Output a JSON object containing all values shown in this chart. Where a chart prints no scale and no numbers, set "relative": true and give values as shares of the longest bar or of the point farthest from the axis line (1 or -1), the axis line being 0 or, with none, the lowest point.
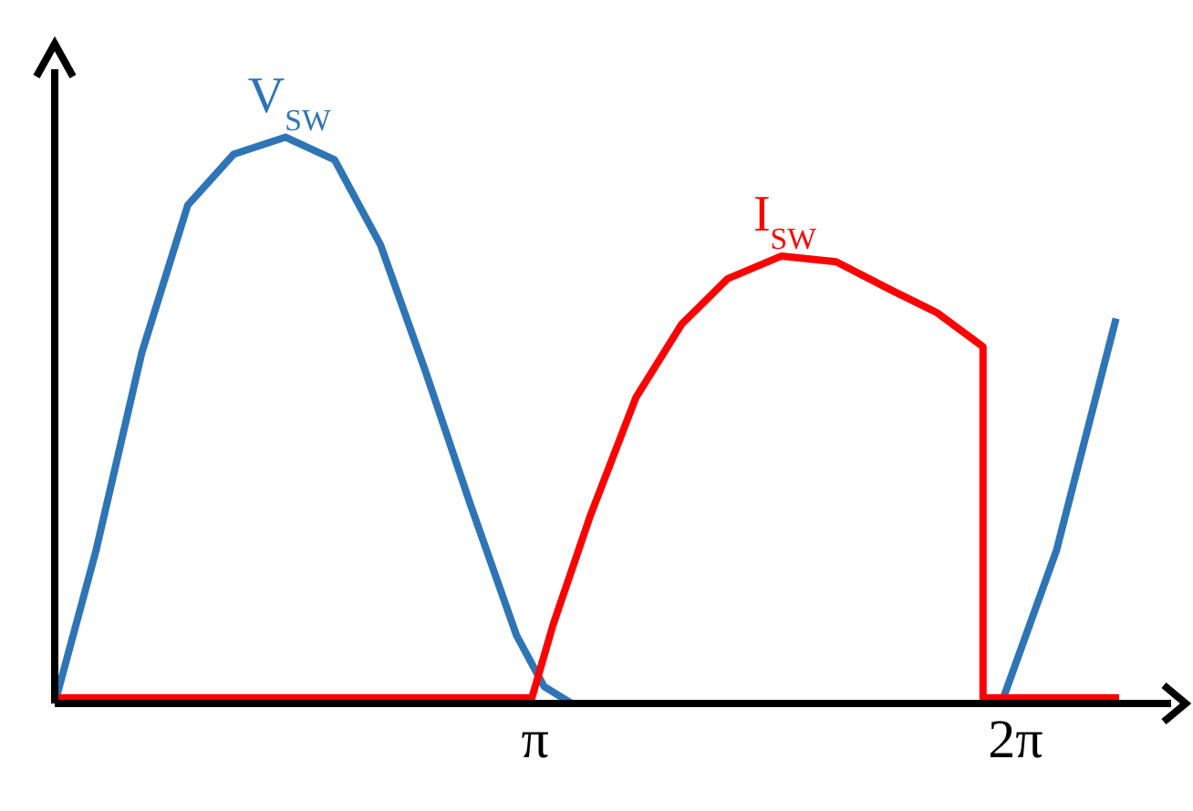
{
  "chart_data": {
    "type": "line",
    "relative": true,
    "marker": "none",
    "line_style": "solid",
    "tick_labels": "x",
    "xlim": [
      0,
      7.3
    ],
    "xticks": [
      {
        "value": 3.1416,
        "label": "π"
      },
      {
        "value": 6.2832,
        "label": "2π"
      }
    ],
    "series": [
      {
        "name": "V$_{SW}$",
        "color": "#2e75b6",
        "x": [
          0,
          0.27,
          0.57,
          0.87,
          1.17,
          1.51,
          1.83,
          2.13,
          2.42,
          2.72,
          3.02,
          3.2,
          3.38,
          6.19,
          6.55,
          6.94
        ],
        "values": [
          0,
          0.27,
          0.62,
          0.88,
          0.97,
          1,
          0.96,
          0.81,
          0.59,
          0.35,
          0.12,
          0.03,
          0,
          0,
          0.27,
          0.68
        ]
      },
      {
        "name": "I$_{SW}$",
        "color": "#ff0000",
        "x": [
          0,
          3.12,
          3.26,
          3.5,
          3.8,
          4.1,
          4.4,
          4.75,
          5.11,
          5.47,
          5.77,
          6.07,
          6.07,
          6.96
        ],
        "values": [
          0.01,
          0.01,
          0.14,
          0.33,
          0.54,
          0.67,
          0.75,
          0.79,
          0.78,
          0.73,
          0.69,
          0.63,
          0.01,
          0.01
        ]
      }
    ]
  }
}
